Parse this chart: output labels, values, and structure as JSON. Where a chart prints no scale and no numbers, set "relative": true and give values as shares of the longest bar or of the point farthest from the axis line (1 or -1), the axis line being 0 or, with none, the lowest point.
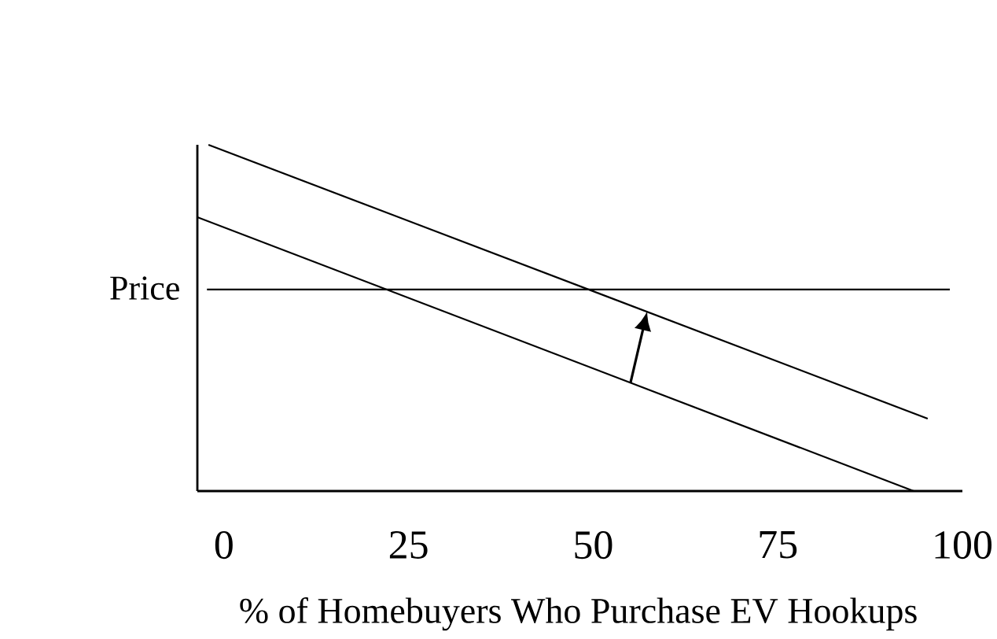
{
  "chart_data": {
    "type": "line",
    "relative": true,
    "xlabel": "% of Homebuyers Who Purchase EV Hookups",
    "ylabel": "Price",
    "xlim": [
      -3.6,
      100
    ],
    "xticks": [
      0,
      25,
      50,
      75,
      100
    ],
    "grid": false,
    "marker": "none",
    "line_style": "solid",
    "series": [
      {
        "color": "#000000",
        "x": [
          -2.1,
          95.3
        ],
        "values": [
          1.0,
          0.209
        ]
      },
      {
        "color": "#000000",
        "x": [
          -3.6,
          93.4
        ],
        "values": [
          0.791,
          0.0
        ]
      },
      {
        "color": "#000000",
        "x": [
          -2.3,
          98.3
        ],
        "values": [
          0.582,
          0.582
        ]
      }
    ]
  }
}
